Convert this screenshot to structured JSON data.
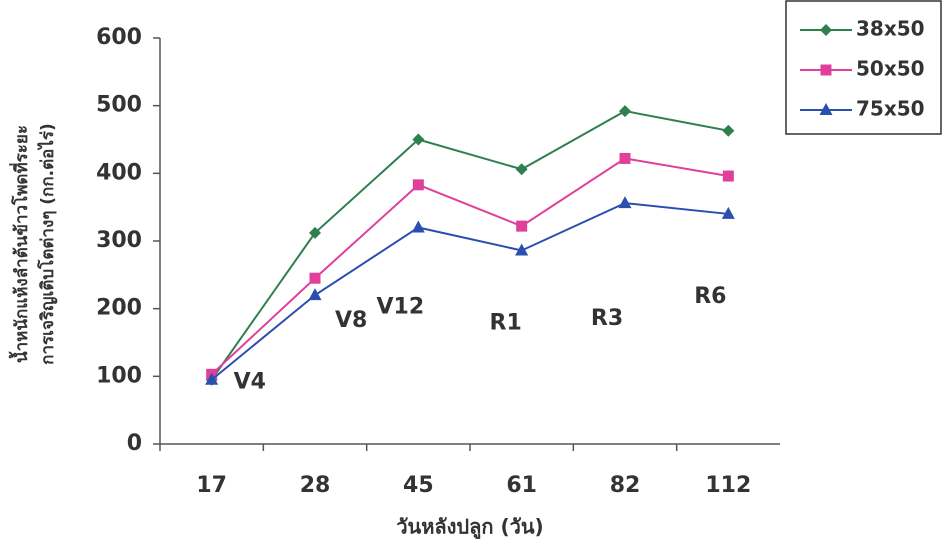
{
  "chart_data": {
    "type": "line",
    "x_label": "วันหลังปลูก (วัน)",
    "y_label": [
      "น้ำหนักแห้งลำต้นข้าวโพดที่ระยะ",
      "การเจริญเติบโตต่างๆ (กก.ต่อไร่)"
    ],
    "categories": [
      "17",
      "28",
      "45",
      "61",
      "82",
      "112"
    ],
    "series": [
      {
        "name": "38x50",
        "color": "#2f7f4f",
        "marker": "diamond",
        "values": [
          95,
          312,
          450,
          406,
          492,
          463
        ]
      },
      {
        "name": "50x50",
        "color": "#e0409a",
        "marker": "square",
        "values": [
          103,
          245,
          383,
          322,
          422,
          396
        ]
      },
      {
        "name": "75x50",
        "color": "#2a4fb0",
        "marker": "triangle",
        "values": [
          95,
          220,
          320,
          286,
          356,
          340
        ]
      }
    ],
    "annotations": [
      "V4",
      "V8",
      "V12",
      "R1",
      "R3",
      "R6"
    ],
    "ylim": [
      0,
      600
    ],
    "yticks": [
      0,
      100,
      200,
      300,
      400,
      500,
      600
    ],
    "legend": "top-right"
  }
}
